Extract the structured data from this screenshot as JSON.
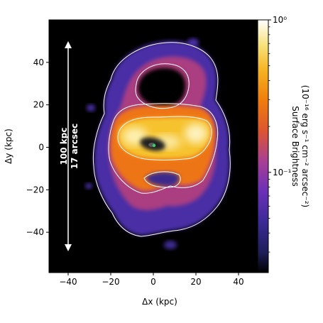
{
  "chart_data": {
    "type": "heatmap",
    "title": "",
    "xlabel": "Δx (kpc)",
    "ylabel": "Δy (kpc)",
    "xlim": [
      -49,
      54
    ],
    "ylim": [
      -59,
      60
    ],
    "xticks": [
      -40,
      -20,
      0,
      20,
      40
    ],
    "yticks": [
      -40,
      -20,
      0,
      20,
      40
    ],
    "colorbar": {
      "label_line1": "Surface Brightness",
      "label_line2": "(10⁻¹⁶ erg s⁻¹ cm⁻² arcsec⁻²)",
      "scale": "log",
      "range": [
        0.022,
        1.0
      ],
      "ticks": [
        {
          "value": 1.0,
          "label": "10⁰"
        },
        {
          "value": 0.1,
          "label": "10⁻¹"
        }
      ],
      "colormap": "CMRmap",
      "colors": [
        "#000000",
        "#26266e",
        "#4b2fa3",
        "#8a38c4",
        "#c44d7a",
        "#e8611e",
        "#f59a0d",
        "#f5d23a",
        "#ffffff"
      ]
    },
    "scale_bar": {
      "label_line1": "100 kpc",
      "label_line2": "17 arcsec",
      "x": -40,
      "y_range": [
        -49,
        49
      ]
    },
    "contour_color": "#ffffff",
    "background_color": "#000000"
  }
}
